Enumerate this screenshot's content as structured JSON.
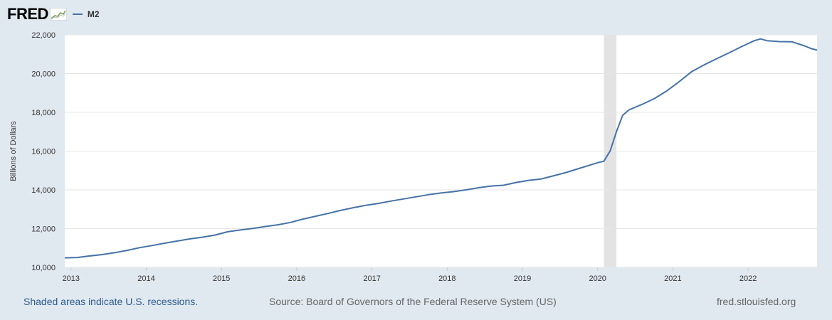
{
  "header": {
    "logo_text": "FRED",
    "legend_label": "M2"
  },
  "colors": {
    "series": "#4572a7",
    "recession": "#e3e3e3",
    "background": "#e1e9f0",
    "plot": "#ffffff",
    "grid": "#e6e6e6",
    "footnote_link": "#2b5a8f"
  },
  "footer": {
    "note": "Shaded areas indicate U.S. recessions.",
    "source": "Source: Board of Governors of the Federal Reserve System (US)",
    "site": "fred.stlouisfed.org"
  },
  "chart_data": {
    "type": "line",
    "ylabel": "Billions of Dollars",
    "ylim": [
      10000,
      22000
    ],
    "xlim": [
      "2012-12",
      "2022-12"
    ],
    "y_ticks": [
      "10,000",
      "12,000",
      "14,000",
      "16,000",
      "18,000",
      "20,000",
      "22,000"
    ],
    "x_ticks": [
      "2013",
      "2014",
      "2015",
      "2016",
      "2017",
      "2018",
      "2019",
      "2020",
      "2021",
      "2022"
    ],
    "grid": true,
    "legend": "top-left",
    "recessions": [
      {
        "start": "2020-02",
        "end": "2020-04"
      }
    ],
    "series": [
      {
        "name": "M2",
        "points": [
          [
            "2012-12",
            10490
          ],
          [
            "2013-02",
            10510
          ],
          [
            "2013-04",
            10590
          ],
          [
            "2013-06",
            10660
          ],
          [
            "2013-08",
            10760
          ],
          [
            "2013-10",
            10880
          ],
          [
            "2013-12",
            11020
          ],
          [
            "2014-02",
            11130
          ],
          [
            "2014-04",
            11250
          ],
          [
            "2014-06",
            11360
          ],
          [
            "2014-08",
            11470
          ],
          [
            "2014-10",
            11560
          ],
          [
            "2014-12",
            11670
          ],
          [
            "2015-02",
            11840
          ],
          [
            "2015-04",
            11930
          ],
          [
            "2015-06",
            12010
          ],
          [
            "2015-08",
            12110
          ],
          [
            "2015-10",
            12200
          ],
          [
            "2015-12",
            12320
          ],
          [
            "2016-02",
            12490
          ],
          [
            "2016-04",
            12640
          ],
          [
            "2016-06",
            12780
          ],
          [
            "2016-08",
            12940
          ],
          [
            "2016-10",
            13080
          ],
          [
            "2016-12",
            13200
          ],
          [
            "2017-02",
            13300
          ],
          [
            "2017-04",
            13420
          ],
          [
            "2017-06",
            13530
          ],
          [
            "2017-08",
            13640
          ],
          [
            "2017-10",
            13750
          ],
          [
            "2017-12",
            13840
          ],
          [
            "2018-02",
            13910
          ],
          [
            "2018-04",
            14000
          ],
          [
            "2018-06",
            14110
          ],
          [
            "2018-08",
            14200
          ],
          [
            "2018-10",
            14240
          ],
          [
            "2018-12",
            14380
          ],
          [
            "2019-02",
            14490
          ],
          [
            "2019-04",
            14560
          ],
          [
            "2019-06",
            14730
          ],
          [
            "2019-08",
            14900
          ],
          [
            "2019-10",
            15100
          ],
          [
            "2019-12",
            15300
          ],
          [
            "2020-01",
            15400
          ],
          [
            "2020-02",
            15480
          ],
          [
            "2020-03",
            16010
          ],
          [
            "2020-04",
            17000
          ],
          [
            "2020-05",
            17850
          ],
          [
            "2020-06",
            18130
          ],
          [
            "2020-08",
            18400
          ],
          [
            "2020-10",
            18700
          ],
          [
            "2020-12",
            19100
          ],
          [
            "2021-02",
            19580
          ],
          [
            "2021-04",
            20100
          ],
          [
            "2021-06",
            20450
          ],
          [
            "2021-08",
            20770
          ],
          [
            "2021-10",
            21080
          ],
          [
            "2021-12",
            21400
          ],
          [
            "2022-02",
            21700
          ],
          [
            "2022-03",
            21790
          ],
          [
            "2022-04",
            21700
          ],
          [
            "2022-06",
            21650
          ],
          [
            "2022-08",
            21640
          ],
          [
            "2022-10",
            21430
          ],
          [
            "2022-11",
            21300
          ],
          [
            "2022-12",
            21210
          ]
        ]
      }
    ]
  }
}
